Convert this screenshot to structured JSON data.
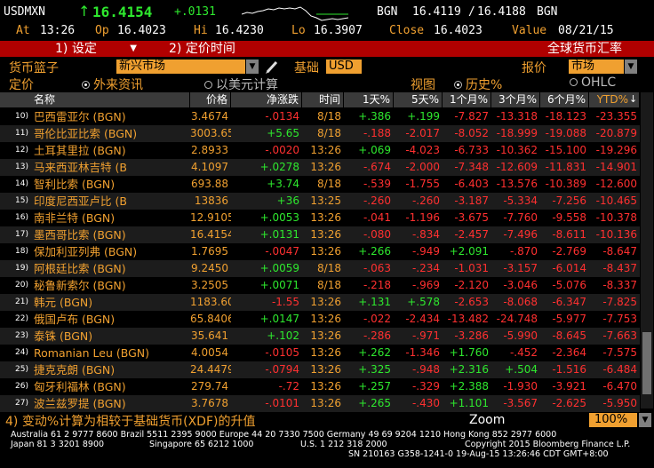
{
  "ticker": {
    "symbol": "USDMXN",
    "arrow": "↑",
    "last": "16.4154",
    "change": "+.0131",
    "bid_label": "BGN",
    "bid": "16.4119",
    "ask": "16.4188",
    "ask_label": "BGN",
    "at_label": "At",
    "at_time": "13:26",
    "op_label": "Op",
    "op": "16.4023",
    "hi_label": "Hi",
    "hi": "16.4230",
    "lo_label": "Lo",
    "lo": "16.3907",
    "close_label": "Close",
    "close": "16.4023",
    "value_label": "Value",
    "value_date": "08/21/15"
  },
  "menu": {
    "settings": "1) 设定",
    "pricing_time": "2) 定价时间",
    "title": "全球货币汇率"
  },
  "controls": {
    "basket_label": "货币篮子",
    "basket_value": "新兴市场",
    "base_label": "基础",
    "base_value": "USD",
    "quote_label": "报价",
    "quote_value": "市场",
    "pricing_label": "定价",
    "opt_foreign": "外来资讯",
    "opt_usd": "以美元计算",
    "view_label": "视图",
    "opt_history": "历史%",
    "opt_ohlc": "OHLC"
  },
  "table": {
    "headers": [
      "名称",
      "价格",
      "净涨跌",
      "时间",
      "1天%",
      "5天%",
      "1个月%",
      "3个月%",
      "6个月%",
      "YTD%"
    ],
    "sort_indicator": "↓",
    "rows": [
      {
        "n": "10)",
        "name": "巴西雷亚尔 (BGN)",
        "price": "3.4674",
        "chg": "-.0134",
        "time": "8/18",
        "d1": "+.386",
        "d5": "+.199",
        "m1": "-7.827",
        "m3": "-13.318",
        "m6": "-18.123",
        "ytd": "-23.355"
      },
      {
        "n": "11)",
        "name": "哥伦比亚比索 (BGN)",
        "price": "3003.65",
        "chg": "+5.65",
        "time": "8/18",
        "d1": "-.188",
        "d5": "-2.017",
        "m1": "-8.052",
        "m3": "-18.999",
        "m6": "-19.088",
        "ytd": "-20.879"
      },
      {
        "n": "12)",
        "name": "土耳其里拉 (BGN)",
        "price": "2.8933",
        "chg": "-.0020",
        "time": "13:26",
        "d1": "+.069",
        "d5": "-4.023",
        "m1": "-6.733",
        "m3": "-10.362",
        "m6": "-15.100",
        "ytd": "-19.296"
      },
      {
        "n": "13)",
        "name": "马来西亚林吉特 (B",
        "price": "4.1097",
        "chg": "+.0278",
        "time": "13:26",
        "d1": "-.674",
        "d5": "-2.000",
        "m1": "-7.348",
        "m3": "-12.609",
        "m6": "-11.831",
        "ytd": "-14.901"
      },
      {
        "n": "14)",
        "name": "智利比索 (BGN)",
        "price": "693.88",
        "chg": "+3.74",
        "time": "8/18",
        "d1": "-.539",
        "d5": "-1.755",
        "m1": "-6.403",
        "m3": "-13.576",
        "m6": "-10.389",
        "ytd": "-12.600"
      },
      {
        "n": "15)",
        "name": "印度尼西亚卢比 (B",
        "price": "13836",
        "chg": "+36",
        "time": "13:25",
        "d1": "-.260",
        "d5": "-.260",
        "m1": "-3.187",
        "m3": "-5.334",
        "m6": "-7.256",
        "ytd": "-10.465"
      },
      {
        "n": "16)",
        "name": "南非兰特 (BGN)",
        "price": "12.9105",
        "chg": "+.0053",
        "time": "13:26",
        "d1": "-.041",
        "d5": "-1.196",
        "m1": "-3.675",
        "m3": "-7.760",
        "m6": "-9.558",
        "ytd": "-10.378"
      },
      {
        "n": "17)",
        "name": "墨西哥比索 (BGN)",
        "price": "16.4154",
        "chg": "+.0131",
        "time": "13:26",
        "d1": "-.080",
        "d5": "-.834",
        "m1": "-2.457",
        "m3": "-7.496",
        "m6": "-8.611",
        "ytd": "-10.136"
      },
      {
        "n": "18)",
        "name": "保加利亚列弗 (BGN)",
        "price": "1.7695",
        "chg": "-.0047",
        "time": "13:26",
        "d1": "+.266",
        "d5": "-.949",
        "m1": "+2.091",
        "m3": "-.870",
        "m6": "-2.769",
        "ytd": "-8.647"
      },
      {
        "n": "19)",
        "name": "阿根廷比索 (BGN)",
        "price": "9.2450",
        "chg": "+.0059",
        "time": "8/18",
        "d1": "-.063",
        "d5": "-.234",
        "m1": "-1.031",
        "m3": "-3.157",
        "m6": "-6.014",
        "ytd": "-8.437"
      },
      {
        "n": "20)",
        "name": "秘鲁新索尔 (BGN)",
        "price": "3.2505",
        "chg": "+.0071",
        "time": "8/18",
        "d1": "-.218",
        "d5": "-.969",
        "m1": "-2.120",
        "m3": "-3.046",
        "m6": "-5.076",
        "ytd": "-8.337"
      },
      {
        "n": "21)",
        "name": "韩元 (BGN)",
        "price": "1183.60",
        "chg": "-1.55",
        "time": "13:26",
        "d1": "+.131",
        "d5": "+.578",
        "m1": "-2.653",
        "m3": "-8.068",
        "m6": "-6.347",
        "ytd": "-7.825"
      },
      {
        "n": "22)",
        "name": "俄国卢布 (BGN)",
        "price": "65.8406",
        "chg": "+.0147",
        "time": "13:26",
        "d1": "-.022",
        "d5": "-2.434",
        "m1": "-13.482",
        "m3": "-24.748",
        "m6": "-5.977",
        "ytd": "-7.753"
      },
      {
        "n": "23)",
        "name": "泰铢 (BGN)",
        "price": "35.641",
        "chg": "+.102",
        "time": "13:26",
        "d1": "-.286",
        "d5": "-.971",
        "m1": "-3.286",
        "m3": "-5.990",
        "m6": "-8.645",
        "ytd": "-7.663"
      },
      {
        "n": "24)",
        "name": "Romanian Leu (BGN)",
        "price": "4.0054",
        "chg": "-.0105",
        "time": "13:26",
        "d1": "+.262",
        "d5": "-1.346",
        "m1": "+1.760",
        "m3": "-.452",
        "m6": "-2.364",
        "ytd": "-7.575"
      },
      {
        "n": "25)",
        "name": "捷克克朗 (BGN)",
        "price": "24.4479",
        "chg": "-.0794",
        "time": "13:26",
        "d1": "+.325",
        "d5": "-.948",
        "m1": "+2.316",
        "m3": "+.504",
        "m6": "-1.516",
        "ytd": "-6.484"
      },
      {
        "n": "26)",
        "name": "匈牙利福林 (BGN)",
        "price": "279.74",
        "chg": "-.72",
        "time": "13:26",
        "d1": "+.257",
        "d5": "-.329",
        "m1": "+2.388",
        "m3": "-1.930",
        "m6": "-3.921",
        "ytd": "-6.470"
      },
      {
        "n": "27)",
        "name": "波兰兹罗提 (BGN)",
        "price": "3.7678",
        "chg": "-.0101",
        "time": "13:26",
        "d1": "+.265",
        "d5": "-.430",
        "m1": "+1.101",
        "m3": "-3.567",
        "m6": "-2.625",
        "ytd": "-5.950"
      }
    ]
  },
  "footer": {
    "note": "4) 变动%计算为相较于基础货币(XDF)的升值",
    "zoom_label": "Zoom",
    "zoom_value": "100%",
    "line1": "Australia 61 2 9777 8600 Brazil 5511 2395 9000 Europe 44 20 7330 7500 Germany 49 69 9204 1210 Hong Kong 852 2977 6000",
    "line2a": "Japan 81 3 3201 8900",
    "line2b": "Singapore 65 6212 1000",
    "line2c": "U.S. 1 212 318 2000",
    "line2d": "Copyright 2015 Bloomberg Finance L.P.",
    "line3": "SN 210163 G358-1241-0 19-Aug-15 13:26:46 CDT  GMT+8:00"
  },
  "colors": {
    "amber": "#f0a030",
    "green": "#2ee82e",
    "red": "#ff3030",
    "menubar": "#b00000"
  }
}
